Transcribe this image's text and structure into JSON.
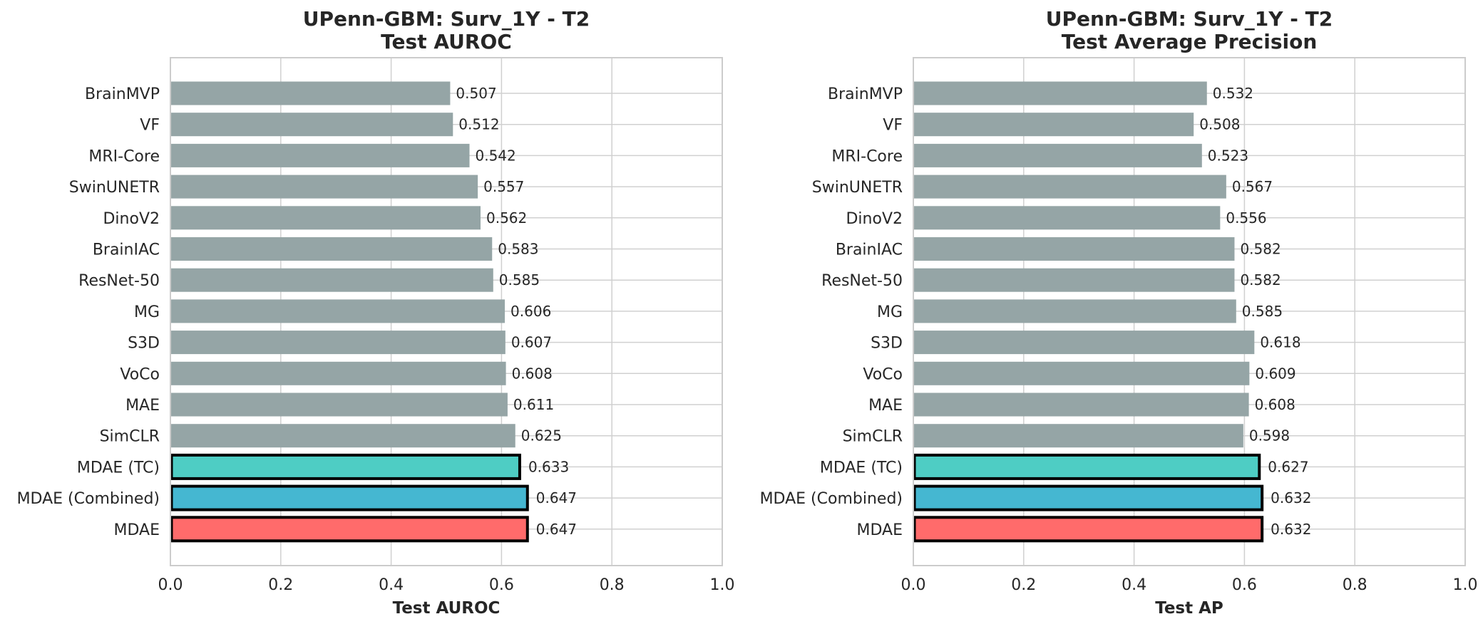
{
  "chart_data": [
    {
      "type": "bar",
      "orientation": "horizontal",
      "title": "UPenn-GBM: Surv_1Y - T2",
      "subtitle": "Test AUROC",
      "xlabel": "Test AUROC",
      "ylabel": "",
      "xlim": [
        0.0,
        1.0
      ],
      "xticks": [
        "0.0",
        "0.2",
        "0.4",
        "0.6",
        "0.8",
        "1.0"
      ],
      "grid": true,
      "categories": [
        "BrainMVP",
        "VF",
        "MRI-Core",
        "SwinUNETR",
        "DinoV2",
        "BrainIAC",
        "ResNet-50",
        "MG",
        "S3D",
        "VoCo",
        "MAE",
        "SimCLR",
        "MDAE (TC)",
        "MDAE (Combined)",
        "MDAE"
      ],
      "values": [
        0.507,
        0.512,
        0.542,
        0.557,
        0.562,
        0.583,
        0.585,
        0.606,
        0.607,
        0.608,
        0.611,
        0.625,
        0.633,
        0.647,
        0.647
      ],
      "value_labels": [
        "0.507",
        "0.512",
        "0.542",
        "0.557",
        "0.562",
        "0.583",
        "0.585",
        "0.606",
        "0.607",
        "0.608",
        "0.611",
        "0.625",
        "0.633",
        "0.647",
        "0.647"
      ],
      "colors": [
        "#95a5a6",
        "#95a5a6",
        "#95a5a6",
        "#95a5a6",
        "#95a5a6",
        "#95a5a6",
        "#95a5a6",
        "#95a5a6",
        "#95a5a6",
        "#95a5a6",
        "#95a5a6",
        "#95a5a6",
        "#4ecdc4",
        "#45b7d1",
        "#ff6b6b"
      ],
      "highlighted": [
        false,
        false,
        false,
        false,
        false,
        false,
        false,
        false,
        false,
        false,
        false,
        false,
        true,
        true,
        true
      ]
    },
    {
      "type": "bar",
      "orientation": "horizontal",
      "title": "UPenn-GBM: Surv_1Y - T2",
      "subtitle": "Test Average Precision",
      "xlabel": "Test AP",
      "ylabel": "",
      "xlim": [
        0.0,
        1.0
      ],
      "xticks": [
        "0.0",
        "0.2",
        "0.4",
        "0.6",
        "0.8",
        "1.0"
      ],
      "grid": true,
      "categories": [
        "BrainMVP",
        "VF",
        "MRI-Core",
        "SwinUNETR",
        "DinoV2",
        "BrainIAC",
        "ResNet-50",
        "MG",
        "S3D",
        "VoCo",
        "MAE",
        "SimCLR",
        "MDAE (TC)",
        "MDAE (Combined)",
        "MDAE"
      ],
      "values": [
        0.532,
        0.508,
        0.523,
        0.567,
        0.556,
        0.582,
        0.582,
        0.585,
        0.618,
        0.609,
        0.608,
        0.598,
        0.627,
        0.632,
        0.632
      ],
      "value_labels": [
        "0.532",
        "0.508",
        "0.523",
        "0.567",
        "0.556",
        "0.582",
        "0.582",
        "0.585",
        "0.618",
        "0.609",
        "0.608",
        "0.598",
        "0.627",
        "0.632",
        "0.632"
      ],
      "colors": [
        "#95a5a6",
        "#95a5a6",
        "#95a5a6",
        "#95a5a6",
        "#95a5a6",
        "#95a5a6",
        "#95a5a6",
        "#95a5a6",
        "#95a5a6",
        "#95a5a6",
        "#95a5a6",
        "#95a5a6",
        "#4ecdc4",
        "#45b7d1",
        "#ff6b6b"
      ],
      "highlighted": [
        false,
        false,
        false,
        false,
        false,
        false,
        false,
        false,
        false,
        false,
        false,
        false,
        true,
        true,
        true
      ]
    }
  ]
}
